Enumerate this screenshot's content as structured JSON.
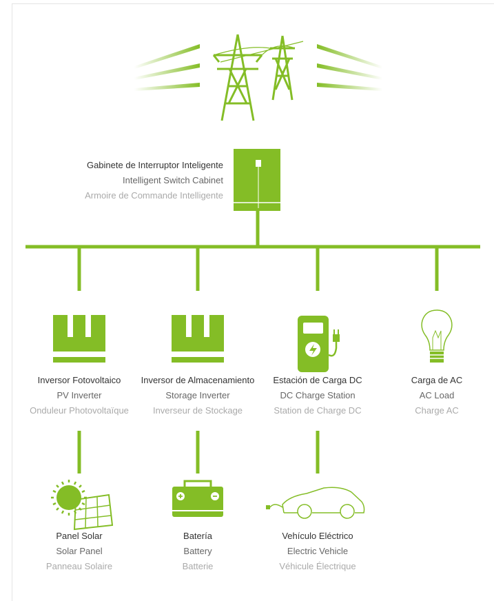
{
  "nodes": [
    {
      "labels": [
        "Gabinete de Interruptor Inteligente",
        "Intelligent Switch Cabinet",
        "Armoire de Commande Intelligente"
      ]
    },
    {
      "labels": [
        "Inversor Fotovoltaico",
        "PV Inverter",
        "Onduleur Photovoltaïque"
      ]
    },
    {
      "labels": [
        "Inversor de Almacenamiento",
        "Storage Inverter",
        "Inverseur de Stockage"
      ]
    },
    {
      "labels": [
        "Estación de Carga DC",
        "DC Charge Station",
        "Station de Charge DC"
      ]
    },
    {
      "labels": [
        "Carga de AC",
        "AC Load",
        "Charge AC"
      ]
    },
    {
      "labels": [
        "Panel Solar",
        "Solar Panel",
        "Panneau Solaire"
      ]
    },
    {
      "labels": [
        "Batería",
        "Battery",
        "Batterie"
      ]
    },
    {
      "labels": [
        "Vehículo Eléctrico",
        "Electric Vehicle",
        "Véhicule Électrique"
      ]
    }
  ]
}
